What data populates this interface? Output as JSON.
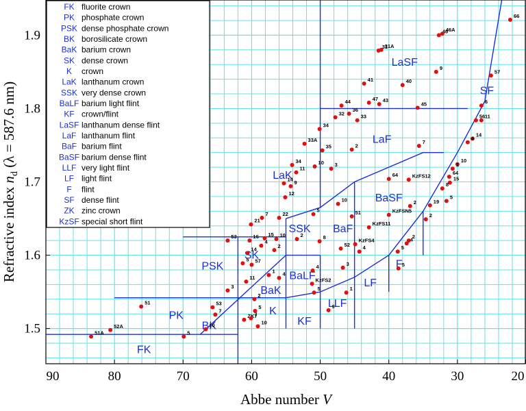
{
  "chart_data": {
    "type": "scatter",
    "xlabel": [
      "Abbe number ",
      "V"
    ],
    "ylabel": [
      "Refractive index ",
      "n",
      "d",
      " (λ = 587.6 nm)"
    ],
    "xlim": [
      90,
      20
    ],
    "ylim": [
      1.452,
      1.948
    ],
    "xticks": [
      90,
      80,
      70,
      60,
      50,
      40,
      30,
      20
    ],
    "yticks": [
      1.5,
      1.6,
      1.7,
      1.8,
      1.9
    ],
    "xgrid": [
      88,
      86,
      84,
      82,
      80,
      78,
      76,
      74,
      72,
      70,
      68,
      66,
      64,
      62,
      60,
      58,
      56,
      54,
      52,
      50,
      48,
      46,
      44,
      42,
      40,
      38,
      36,
      34,
      32,
      30,
      28,
      26,
      24,
      22
    ],
    "ygrid": [
      1.46,
      1.48,
      1.5,
      1.52,
      1.54,
      1.56,
      1.58,
      1.6,
      1.62,
      1.64,
      1.66,
      1.68,
      1.7,
      1.72,
      1.74,
      1.76,
      1.78,
      1.8,
      1.82,
      1.84,
      1.86,
      1.88,
      1.9,
      1.92,
      1.94
    ],
    "grid": true,
    "grid_color": "#5fe3e8",
    "boundary_color": "#1a2fd6",
    "region_color": "#1a2fd6",
    "series": [
      {
        "color": "#e01010",
        "x": [
          83.4,
          80.6,
          76.1,
          69.9,
          66.7,
          65.3,
          65.7,
          61.1,
          60.1,
          59.5,
          59.1,
          59.6,
          56.0,
          57.5,
          60.8,
          63.5,
          61.3,
          60.0,
          60.6,
          60.3,
          58.1,
          56.4,
          58.6,
          56.7,
          63.5,
          60.1,
          58.5,
          56.0,
          51.0,
          55.1,
          54.3,
          55.3,
          54.1,
          50.8,
          53.5,
          52.3,
          49.7,
          50.1,
          45.4,
          48.4,
          46.9,
          47.8,
          45.8,
          44.6,
          42.9,
          41.4,
          43.6,
          38.0,
          35.8,
          41.5,
          41.1,
          32.7,
          32.2,
          33.1,
          22.3,
          25.1,
          26.5,
          27.3,
          26.5,
          27.8,
          28.5,
          35.6,
          30.0,
          30.7,
          31.2,
          31.1,
          32.2,
          31.6,
          34.0,
          34.6,
          37.1,
          40.0,
          36.9,
          40.0,
          42.9,
          45.4,
          47.4,
          50.1,
          53.4,
          44.9,
          47.0,
          44.3,
          46.7,
          38.6,
          38.7,
          37.1,
          37.4,
          46.2,
          51.1,
          51.2,
          50.9,
          48.8
        ],
        "y": [
          1.489,
          1.498,
          1.53,
          1.489,
          1.499,
          1.519,
          1.529,
          1.512,
          1.514,
          1.524,
          1.503,
          1.54,
          1.569,
          1.573,
          1.564,
          1.552,
          1.589,
          1.587,
          1.603,
          1.62,
          1.623,
          1.622,
          1.613,
          1.607,
          1.62,
          1.642,
          1.651,
          1.651,
          1.656,
          1.679,
          1.694,
          1.698,
          1.723,
          1.721,
          1.713,
          1.752,
          1.743,
          1.772,
          1.744,
          1.718,
          1.804,
          1.788,
          1.793,
          1.784,
          1.808,
          1.806,
          1.834,
          1.832,
          1.801,
          1.879,
          1.88,
          1.9,
          1.902,
          1.85,
          1.921,
          1.845,
          1.804,
          1.784,
          1.784,
          1.759,
          1.754,
          1.749,
          1.724,
          1.718,
          1.707,
          1.699,
          1.691,
          1.674,
          1.668,
          1.649,
          1.703,
          1.704,
          1.667,
          1.655,
          1.638,
          1.653,
          1.67,
          1.619,
          1.622,
          1.615,
          1.609,
          1.605,
          1.583,
          1.582,
          1.605,
          1.62,
          1.616,
          1.549,
          1.579,
          1.561,
          1.549,
          1.525
        ],
        "labels": [
          "51A",
          "52A",
          "51",
          "5",
          "10",
          "7",
          "53",
          "ZK7",
          "7",
          "5",
          "10",
          "2",
          "4",
          "1",
          "11",
          "3",
          "5",
          "57",
          "14",
          "16",
          "15",
          "10",
          "4",
          "2",
          "53",
          "21",
          "7",
          "22",
          "5",
          "12",
          "9",
          "14",
          "34",
          "10",
          "11",
          "33A",
          "35",
          "34",
          "2",
          "3",
          "44",
          "32",
          "36",
          "33",
          "47",
          "43",
          "41",
          "40",
          "45",
          "31",
          "31A",
          "46",
          "46A",
          "9",
          "66",
          "57",
          "6",
          "56",
          "11",
          "14",
          "4",
          "7",
          "10",
          "1",
          "64",
          "15",
          "8",
          "5",
          "19",
          "2",
          "KzFS12",
          "64",
          "2",
          "KzFSN5",
          "KzFS11",
          "51",
          "10",
          "8",
          "2",
          "KzFS4",
          "52",
          "4",
          "3",
          "5",
          "5",
          "2",
          "4",
          "1",
          "4",
          "KzFS2",
          "5",
          "9"
        ]
      }
    ],
    "boundaries": [
      {
        "x": [
          90,
          67.5
        ],
        "y": [
          1.492,
          1.492
        ]
      },
      {
        "x": [
          80,
          62,
          55,
          50,
          45,
          40,
          35,
          30,
          26,
          23.5
        ],
        "y": [
          1.542,
          1.542,
          1.542,
          1.55,
          1.57,
          1.6,
          1.66,
          1.74,
          1.81,
          1.95
        ]
      },
      {
        "x": [
          67.5,
          55,
          50
        ],
        "y": [
          1.492,
          1.6,
          1.6
        ]
      },
      {
        "x": [
          67.5,
          62
        ],
        "y": [
          1.492,
          1.492
        ]
      },
      {
        "x": [
          62,
          62
        ],
        "y": [
          1.625,
          1.452
        ]
      },
      {
        "x": [
          70,
          55
        ],
        "y": [
          1.625,
          1.625
        ]
      },
      {
        "x": [
          55,
          55
        ],
        "y": [
          1.65,
          1.5
        ]
      },
      {
        "x": [
          55,
          50,
          45,
          35,
          32
        ],
        "y": [
          1.65,
          1.665,
          1.7,
          1.74,
          1.74
        ]
      },
      {
        "x": [
          50,
          50
        ],
        "y": [
          1.948,
          1.665
        ]
      },
      {
        "x": [
          50,
          50
        ],
        "y": [
          1.6,
          1.5
        ]
      },
      {
        "x": [
          50,
          28.5
        ],
        "y": [
          1.8,
          1.8
        ]
      },
      {
        "x": [
          45,
          45
        ],
        "y": [
          1.7,
          1.5
        ]
      },
      {
        "x": [
          40,
          40
        ],
        "y": [
          1.6,
          1.55
        ]
      },
      {
        "x": [
          35,
          35
        ],
        "y": [
          1.66,
          1.6
        ]
      }
    ],
    "regions": [
      {
        "text": "FK",
        "x": 75.7,
        "y": 1.472
      },
      {
        "text": "PK",
        "x": 71.0,
        "y": 1.519
      },
      {
        "text": "BK",
        "x": 66.2,
        "y": 1.505
      },
      {
        "text": "PSK",
        "x": 65.7,
        "y": 1.586
      },
      {
        "text": "SK",
        "x": 60.0,
        "y": 1.601
      },
      {
        "text": "BaK",
        "x": 57.2,
        "y": 1.553
      },
      {
        "text": "K",
        "x": 56.9,
        "y": 1.525
      },
      {
        "text": "KF",
        "x": 52.3,
        "y": 1.511
      },
      {
        "text": "LLF",
        "x": 47.5,
        "y": 1.535
      },
      {
        "text": "LF",
        "x": 42.7,
        "y": 1.563
      },
      {
        "text": "F",
        "x": 38.5,
        "y": 1.589
      },
      {
        "text": "BaLF",
        "x": 52.6,
        "y": 1.573
      },
      {
        "text": "SSK",
        "x": 53.0,
        "y": 1.637
      },
      {
        "text": "BaF",
        "x": 46.7,
        "y": 1.637
      },
      {
        "text": "BaSF",
        "x": 40.0,
        "y": 1.679
      },
      {
        "text": "LaK",
        "x": 55.5,
        "y": 1.71
      },
      {
        "text": "LaF",
        "x": 41.0,
        "y": 1.759
      },
      {
        "text": "LaSF",
        "x": 37.7,
        "y": 1.864
      },
      {
        "text": "SF",
        "x": 25.7,
        "y": 1.825
      }
    ],
    "legend": [
      {
        "code": "FK",
        "text": "fluorite crown"
      },
      {
        "code": "PK",
        "text": "phosphate crown"
      },
      {
        "code": "PSK",
        "text": "dense phosphate crown"
      },
      {
        "code": "BK",
        "text": "borosilicate crown"
      },
      {
        "code": "BaK",
        "text": "barium crown"
      },
      {
        "code": "SK",
        "text": "dense crown"
      },
      {
        "code": "K",
        "text": "crown"
      },
      {
        "code": "LaK",
        "text": "lanthanum crown"
      },
      {
        "code": "SSK",
        "text": "very dense crown"
      },
      {
        "code": "BaLF",
        "text": "barium light flint"
      },
      {
        "code": "KF",
        "text": "crown/flint"
      },
      {
        "code": "LaSF",
        "text": "lanthanum dense flint"
      },
      {
        "code": "LaF",
        "text": "lanthanum flint"
      },
      {
        "code": "BaF",
        "text": "barium flint"
      },
      {
        "code": "BaSF",
        "text": "barium dense flint"
      },
      {
        "code": "LLF",
        "text": "very light flint"
      },
      {
        "code": "LF",
        "text": "light flint"
      },
      {
        "code": "F",
        "text": "flint"
      },
      {
        "code": "SF",
        "text": "dense flint"
      },
      {
        "code": "ZK",
        "text": "zinc crown"
      },
      {
        "code": "KzSF",
        "text": "special short flint"
      }
    ]
  }
}
